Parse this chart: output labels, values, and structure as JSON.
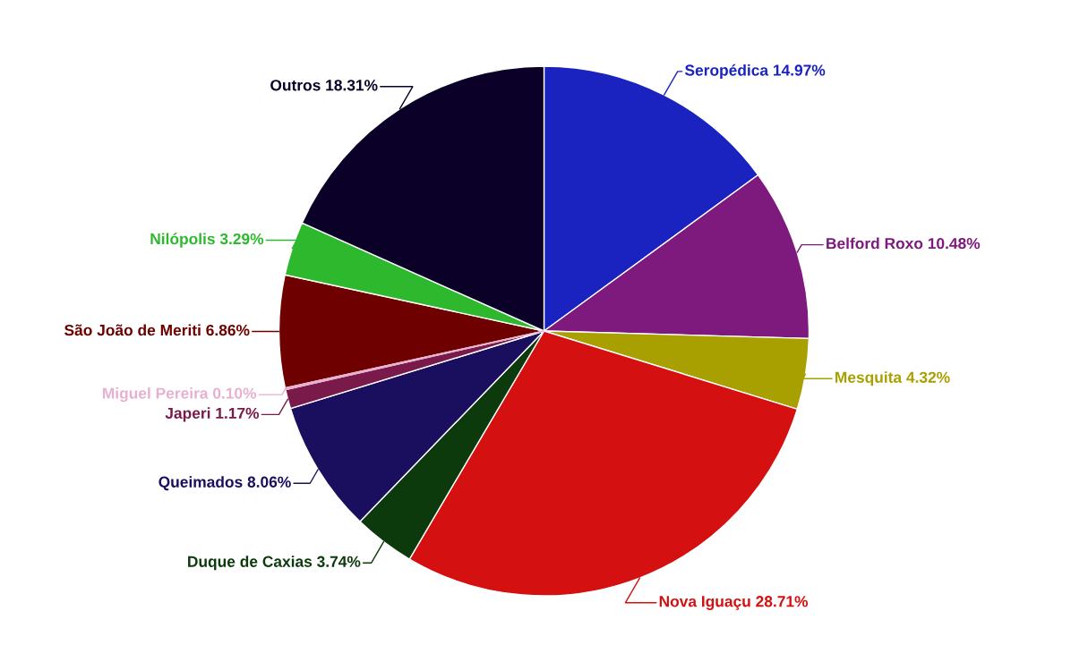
{
  "chart_data": {
    "type": "pie",
    "categories": [
      "Seropédica",
      "Belford Roxo",
      "Mesquita",
      "Nova Iguaçu",
      "Duque de Caxias",
      "Queimados",
      "Japeri",
      "Miguel Pereira",
      "São João de Meriti",
      "Nilópolis",
      "Outros"
    ],
    "values": [
      14.97,
      10.48,
      4.32,
      28.71,
      3.74,
      8.06,
      1.17,
      0.1,
      6.86,
      3.29,
      18.31
    ],
    "value_labels": [
      "14.97%",
      "10.48%",
      "4.32%",
      "28.71%",
      "3.74%",
      "8.06%",
      "1.17%",
      "0.10%",
      "6.86%",
      "3.29%",
      "18.31%"
    ],
    "colors": [
      "#1a22c0",
      "#7e1a7e",
      "#a8a000",
      "#d41010",
      "#0d3a0d",
      "#1a0f5e",
      "#7a1a4a",
      "#e8b0d0",
      "#6e0000",
      "#2db82d",
      "#0a0028"
    ],
    "legend": false
  }
}
